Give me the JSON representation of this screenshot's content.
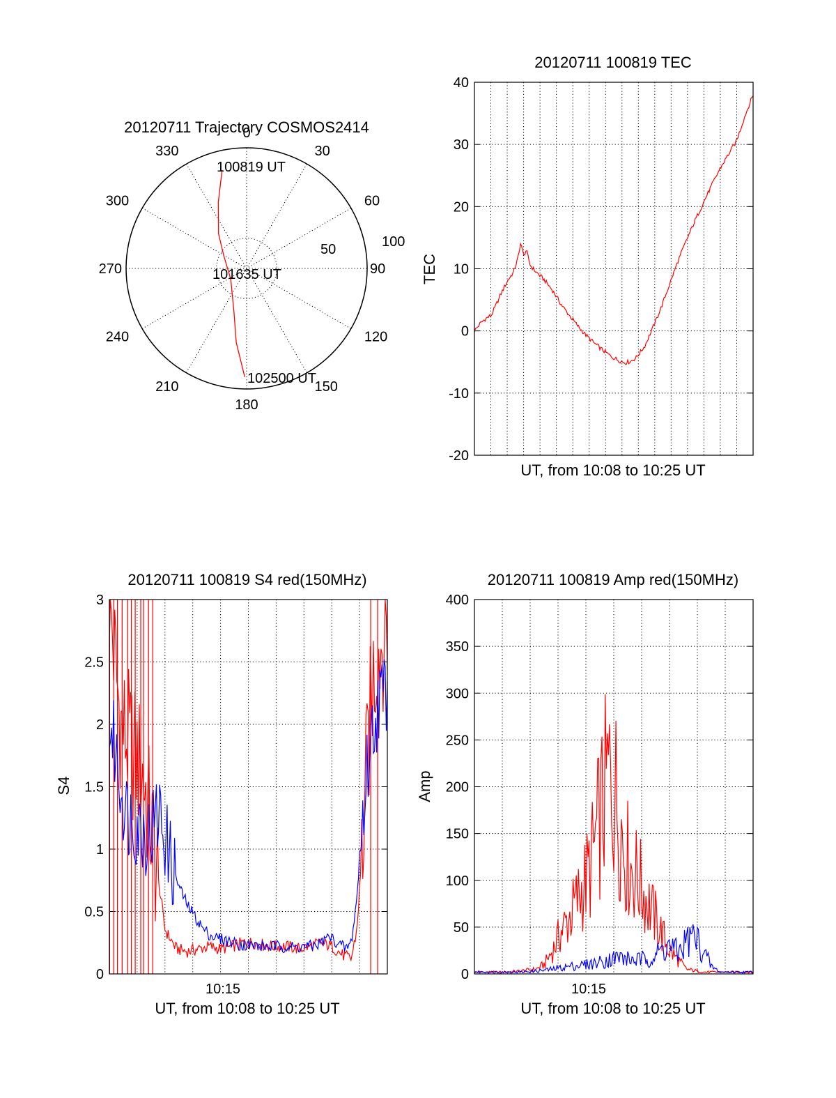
{
  "colors": {
    "red": "#ff0000",
    "blue": "#0000ff",
    "axis": "#000000",
    "background": "#ffffff"
  },
  "chart_data": [
    {
      "type": "polar",
      "title": "20120711 Trajectory COSMOS2414",
      "angle_labels": [
        "0",
        "30",
        "60",
        "90",
        "120",
        "150",
        "180",
        "210",
        "240",
        "270",
        "300",
        "330"
      ],
      "radial_labels": [
        "50",
        "100"
      ],
      "radial_max_zenith": 100,
      "point_labels": [
        "100819 UT",
        "101635 UT",
        "102500 UT"
      ],
      "trajectory": {
        "color": "red",
        "points": [
          {
            "azimuth": 346,
            "zenith": 84,
            "label": "100819 UT"
          },
          {
            "azimuth": 337,
            "zenith": 60
          },
          {
            "azimuth": 321,
            "zenith": 37
          },
          {
            "azimuth": 300,
            "zenith": 22
          },
          {
            "azimuth": 235,
            "zenith": 16
          },
          {
            "azimuth": 196,
            "zenith": 38
          },
          {
            "azimuth": 188,
            "zenith": 62
          },
          {
            "azimuth": 181,
            "zenith": 90,
            "label": "102500 UT"
          }
        ]
      }
    },
    {
      "type": "line",
      "title": "20120711 100819 TEC",
      "xlabel": "UT, from 10:08 to 10:25 UT",
      "ylabel": "TEC",
      "xlim": [
        "10:08:19",
        "10:25:00"
      ],
      "ylim": [
        -20,
        40
      ],
      "yticks": [
        "40",
        "30",
        "20",
        "10",
        "0",
        "-10",
        "-20"
      ],
      "grid": true,
      "series": [
        {
          "color": "red",
          "x": [
            "10:08:19",
            "10:08:40",
            "10:09:00",
            "10:09:20",
            "10:09:40",
            "10:10:00",
            "10:10:20",
            "10:10:40",
            "10:11:00",
            "10:11:05",
            "10:11:15",
            "10:11:25",
            "10:11:40",
            "10:12:00",
            "10:12:30",
            "10:13:00",
            "10:13:30",
            "10:14:00",
            "10:14:30",
            "10:15:00",
            "10:15:30",
            "10:16:00",
            "10:16:30",
            "10:17:00",
            "10:17:20",
            "10:17:40",
            "10:18:00",
            "10:18:30",
            "10:19:00",
            "10:19:30",
            "10:20:00",
            "10:20:30",
            "10:21:00",
            "10:21:30",
            "10:22:00",
            "10:22:30",
            "10:23:00",
            "10:23:30",
            "10:24:00",
            "10:24:30",
            "10:25:00"
          ],
          "values": [
            0,
            1.2,
            2.0,
            2.5,
            4.5,
            6.5,
            8.2,
            9.5,
            12.5,
            14.5,
            12.0,
            13.0,
            10.5,
            9.5,
            8.2,
            6.5,
            4.3,
            2.5,
            0.8,
            -0.7,
            -2.0,
            -3.1,
            -4.1,
            -4.8,
            -5.1,
            -4.9,
            -4.3,
            -2.5,
            0.5,
            3.8,
            7.5,
            11.2,
            14.5,
            17.6,
            20.5,
            23.3,
            26.0,
            28.3,
            30.5,
            34.5,
            38.0
          ]
        }
      ]
    },
    {
      "type": "line",
      "title": "20120711 100819 S4 red(150MHz)",
      "xlabel": "UT, from 10:08 to 10:25 UT",
      "ylabel": "S4",
      "xlim": [
        "10:08:19",
        "10:25:00"
      ],
      "ylim": [
        0,
        3
      ],
      "yticks": [
        "3",
        "2.5",
        "2",
        "1.5",
        "1",
        "0.5",
        "0"
      ],
      "xticks": [
        "10:15"
      ],
      "grid": true,
      "series": [
        {
          "color": "red",
          "x": [
            "10:08:19",
            "10:09:00",
            "10:09:40",
            "10:10:20",
            "10:11:00",
            "10:11:40",
            "10:12:20",
            "10:13:00",
            "10:13:40",
            "10:14:20",
            "10:15:00",
            "10:15:40",
            "10:16:20",
            "10:17:00",
            "10:17:40",
            "10:18:20",
            "10:19:00",
            "10:19:40",
            "10:20:20",
            "10:21:00",
            "10:21:40",
            "10:22:20",
            "10:22:50",
            "10:23:10",
            "10:23:30",
            "10:23:50",
            "10:24:10",
            "10:24:30",
            "10:25:00"
          ],
          "values": [
            3.0,
            2.0,
            1.8,
            1.6,
            1.0,
            0.35,
            0.2,
            0.18,
            0.2,
            0.22,
            0.2,
            0.22,
            0.25,
            0.25,
            0.23,
            0.22,
            0.22,
            0.2,
            0.22,
            0.25,
            0.22,
            0.15,
            0.12,
            0.35,
            1.0,
            1.8,
            2.4,
            2.6,
            2.8
          ]
        },
        {
          "color": "blue",
          "x": [
            "10:08:19",
            "10:08:40",
            "10:09:00",
            "10:09:20",
            "10:09:40",
            "10:10:00",
            "10:10:20",
            "10:10:40",
            "10:11:00",
            "10:11:20",
            "10:11:40",
            "10:12:00",
            "10:12:30",
            "10:13:00",
            "10:13:30",
            "10:14:00",
            "10:14:30",
            "10:15:00",
            "10:15:30",
            "10:16:00",
            "10:16:30",
            "10:17:00",
            "10:17:30",
            "10:18:00",
            "10:18:30",
            "10:19:00",
            "10:19:30",
            "10:20:00",
            "10:20:30",
            "10:21:00",
            "10:21:30",
            "10:22:00",
            "10:22:30",
            "10:22:50",
            "10:23:10",
            "10:23:30",
            "10:23:50",
            "10:24:10",
            "10:24:30",
            "10:25:00"
          ],
          "values": [
            2.0,
            1.8,
            1.5,
            1.3,
            1.25,
            1.2,
            1.15,
            1.1,
            1.2,
            1.3,
            1.1,
            0.9,
            0.7,
            0.55,
            0.45,
            0.35,
            0.3,
            0.28,
            0.26,
            0.24,
            0.23,
            0.23,
            0.22,
            0.22,
            0.22,
            0.22,
            0.21,
            0.22,
            0.22,
            0.25,
            0.3,
            0.25,
            0.2,
            0.25,
            0.6,
            1.2,
            1.7,
            2.0,
            2.2,
            2.3
          ]
        }
      ]
    },
    {
      "type": "line",
      "title": "20120711 100819 Amp red(150MHz)",
      "xlabel": "UT, from 10:08 to 10:25 UT",
      "ylabel": "Amp",
      "xlim": [
        "10:08:19",
        "10:25:00"
      ],
      "ylim": [
        0,
        400
      ],
      "yticks": [
        "400",
        "350",
        "300",
        "250",
        "200",
        "150",
        "100",
        "50",
        "0"
      ],
      "xticks": [
        "10:15"
      ],
      "grid": true,
      "series": [
        {
          "color": "red",
          "x": [
            "10:08:19",
            "10:10:00",
            "10:11:00",
            "10:12:00",
            "10:12:30",
            "10:13:00",
            "10:13:30",
            "10:14:00",
            "10:14:30",
            "10:15:00",
            "10:15:20",
            "10:15:40",
            "10:16:00",
            "10:16:20",
            "10:16:40",
            "10:17:00",
            "10:17:20",
            "10:17:40",
            "10:18:00",
            "10:18:30",
            "10:19:00",
            "10:19:30",
            "10:20:00",
            "10:20:30",
            "10:21:00",
            "10:22:00",
            "10:25:00"
          ],
          "values": [
            2,
            2,
            3,
            5,
            10,
            25,
            45,
            60,
            80,
            100,
            120,
            150,
            180,
            210,
            200,
            170,
            130,
            115,
            105,
            85,
            65,
            45,
            25,
            15,
            5,
            2,
            2
          ]
        },
        {
          "color": "blue",
          "x": [
            "10:08:19",
            "10:10:00",
            "10:11:00",
            "10:12:00",
            "10:13:00",
            "10:14:00",
            "10:15:00",
            "10:15:40",
            "10:16:20",
            "10:17:00",
            "10:17:40",
            "10:18:20",
            "10:19:00",
            "10:19:30",
            "10:20:00",
            "10:20:30",
            "10:21:00",
            "10:21:30",
            "10:22:00",
            "10:22:30",
            "10:23:00",
            "10:25:00"
          ],
          "values": [
            2,
            2,
            2,
            3,
            5,
            8,
            10,
            12,
            15,
            18,
            15,
            15,
            18,
            25,
            30,
            22,
            35,
            40,
            25,
            8,
            2,
            2
          ]
        }
      ]
    }
  ]
}
